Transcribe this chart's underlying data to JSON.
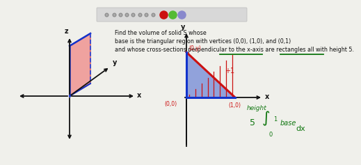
{
  "bg_color": "#f0f0eb",
  "toolbar_bg": "#d8d8d8",
  "text_title1": "Find the volume of solid S whose",
  "text_title2": "base is the triangular region with vertices (0,0), (1,0), and (0,1)",
  "text_title3": "and whose cross-sections perpendicular to the x-axis are rectangles all with height 5.",
  "label_01": "(0,y)",
  "label_10": "(1,0)",
  "label_00": "(0,0)",
  "label_plus1": "+1",
  "integral_text": "height",
  "integral_num": "5",
  "integral_sym": "∫",
  "integral_limits_top": "1",
  "integral_limits_bot": "0",
  "integral_dx": "dx",
  "base_label": "base",
  "axis_color": "#111111",
  "red_color": "#cc1111",
  "blue_color": "#1133cc",
  "green_color": "#117711",
  "dashed_blue": "#2244dd"
}
